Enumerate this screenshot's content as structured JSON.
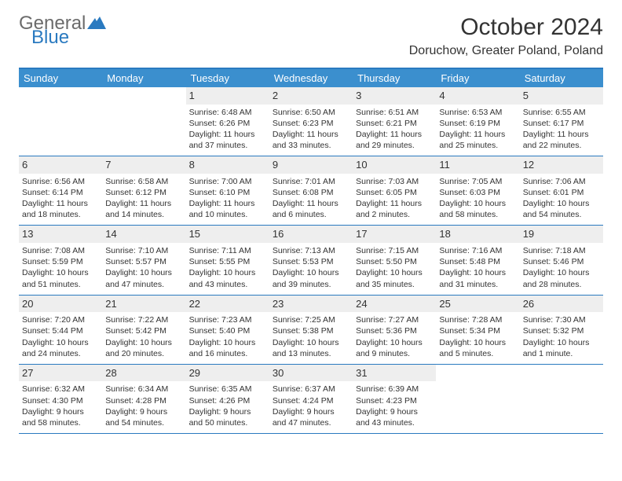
{
  "brand": {
    "part1": "General",
    "part2": "Blue",
    "part1_color": "#6b6b6b",
    "part2_color": "#2a7ac0"
  },
  "header": {
    "title": "October 2024",
    "location": "Doruchow, Greater Poland, Poland"
  },
  "style": {
    "accent": "#3b8fce",
    "accent_border": "#2a7ac0",
    "daynum_bg": "#eeeeee",
    "text": "#333333",
    "head_text": "#ffffff",
    "background": "#ffffff",
    "body_fontsize": 10.5,
    "daynum_fontsize": 13,
    "head_fontsize": 13,
    "title_fontsize": 30,
    "location_fontsize": 16
  },
  "dayheads": [
    "Sunday",
    "Monday",
    "Tuesday",
    "Wednesday",
    "Thursday",
    "Friday",
    "Saturday"
  ],
  "weeks": [
    [
      {},
      {},
      {
        "n": "1",
        "sunrise": "Sunrise: 6:48 AM",
        "sunset": "Sunset: 6:26 PM",
        "daylight": "Daylight: 11 hours and 37 minutes."
      },
      {
        "n": "2",
        "sunrise": "Sunrise: 6:50 AM",
        "sunset": "Sunset: 6:23 PM",
        "daylight": "Daylight: 11 hours and 33 minutes."
      },
      {
        "n": "3",
        "sunrise": "Sunrise: 6:51 AM",
        "sunset": "Sunset: 6:21 PM",
        "daylight": "Daylight: 11 hours and 29 minutes."
      },
      {
        "n": "4",
        "sunrise": "Sunrise: 6:53 AM",
        "sunset": "Sunset: 6:19 PM",
        "daylight": "Daylight: 11 hours and 25 minutes."
      },
      {
        "n": "5",
        "sunrise": "Sunrise: 6:55 AM",
        "sunset": "Sunset: 6:17 PM",
        "daylight": "Daylight: 11 hours and 22 minutes."
      }
    ],
    [
      {
        "n": "6",
        "sunrise": "Sunrise: 6:56 AM",
        "sunset": "Sunset: 6:14 PM",
        "daylight": "Daylight: 11 hours and 18 minutes."
      },
      {
        "n": "7",
        "sunrise": "Sunrise: 6:58 AM",
        "sunset": "Sunset: 6:12 PM",
        "daylight": "Daylight: 11 hours and 14 minutes."
      },
      {
        "n": "8",
        "sunrise": "Sunrise: 7:00 AM",
        "sunset": "Sunset: 6:10 PM",
        "daylight": "Daylight: 11 hours and 10 minutes."
      },
      {
        "n": "9",
        "sunrise": "Sunrise: 7:01 AM",
        "sunset": "Sunset: 6:08 PM",
        "daylight": "Daylight: 11 hours and 6 minutes."
      },
      {
        "n": "10",
        "sunrise": "Sunrise: 7:03 AM",
        "sunset": "Sunset: 6:05 PM",
        "daylight": "Daylight: 11 hours and 2 minutes."
      },
      {
        "n": "11",
        "sunrise": "Sunrise: 7:05 AM",
        "sunset": "Sunset: 6:03 PM",
        "daylight": "Daylight: 10 hours and 58 minutes."
      },
      {
        "n": "12",
        "sunrise": "Sunrise: 7:06 AM",
        "sunset": "Sunset: 6:01 PM",
        "daylight": "Daylight: 10 hours and 54 minutes."
      }
    ],
    [
      {
        "n": "13",
        "sunrise": "Sunrise: 7:08 AM",
        "sunset": "Sunset: 5:59 PM",
        "daylight": "Daylight: 10 hours and 51 minutes."
      },
      {
        "n": "14",
        "sunrise": "Sunrise: 7:10 AM",
        "sunset": "Sunset: 5:57 PM",
        "daylight": "Daylight: 10 hours and 47 minutes."
      },
      {
        "n": "15",
        "sunrise": "Sunrise: 7:11 AM",
        "sunset": "Sunset: 5:55 PM",
        "daylight": "Daylight: 10 hours and 43 minutes."
      },
      {
        "n": "16",
        "sunrise": "Sunrise: 7:13 AM",
        "sunset": "Sunset: 5:53 PM",
        "daylight": "Daylight: 10 hours and 39 minutes."
      },
      {
        "n": "17",
        "sunrise": "Sunrise: 7:15 AM",
        "sunset": "Sunset: 5:50 PM",
        "daylight": "Daylight: 10 hours and 35 minutes."
      },
      {
        "n": "18",
        "sunrise": "Sunrise: 7:16 AM",
        "sunset": "Sunset: 5:48 PM",
        "daylight": "Daylight: 10 hours and 31 minutes."
      },
      {
        "n": "19",
        "sunrise": "Sunrise: 7:18 AM",
        "sunset": "Sunset: 5:46 PM",
        "daylight": "Daylight: 10 hours and 28 minutes."
      }
    ],
    [
      {
        "n": "20",
        "sunrise": "Sunrise: 7:20 AM",
        "sunset": "Sunset: 5:44 PM",
        "daylight": "Daylight: 10 hours and 24 minutes."
      },
      {
        "n": "21",
        "sunrise": "Sunrise: 7:22 AM",
        "sunset": "Sunset: 5:42 PM",
        "daylight": "Daylight: 10 hours and 20 minutes."
      },
      {
        "n": "22",
        "sunrise": "Sunrise: 7:23 AM",
        "sunset": "Sunset: 5:40 PM",
        "daylight": "Daylight: 10 hours and 16 minutes."
      },
      {
        "n": "23",
        "sunrise": "Sunrise: 7:25 AM",
        "sunset": "Sunset: 5:38 PM",
        "daylight": "Daylight: 10 hours and 13 minutes."
      },
      {
        "n": "24",
        "sunrise": "Sunrise: 7:27 AM",
        "sunset": "Sunset: 5:36 PM",
        "daylight": "Daylight: 10 hours and 9 minutes."
      },
      {
        "n": "25",
        "sunrise": "Sunrise: 7:28 AM",
        "sunset": "Sunset: 5:34 PM",
        "daylight": "Daylight: 10 hours and 5 minutes."
      },
      {
        "n": "26",
        "sunrise": "Sunrise: 7:30 AM",
        "sunset": "Sunset: 5:32 PM",
        "daylight": "Daylight: 10 hours and 1 minute."
      }
    ],
    [
      {
        "n": "27",
        "sunrise": "Sunrise: 6:32 AM",
        "sunset": "Sunset: 4:30 PM",
        "daylight": "Daylight: 9 hours and 58 minutes."
      },
      {
        "n": "28",
        "sunrise": "Sunrise: 6:34 AM",
        "sunset": "Sunset: 4:28 PM",
        "daylight": "Daylight: 9 hours and 54 minutes."
      },
      {
        "n": "29",
        "sunrise": "Sunrise: 6:35 AM",
        "sunset": "Sunset: 4:26 PM",
        "daylight": "Daylight: 9 hours and 50 minutes."
      },
      {
        "n": "30",
        "sunrise": "Sunrise: 6:37 AM",
        "sunset": "Sunset: 4:24 PM",
        "daylight": "Daylight: 9 hours and 47 minutes."
      },
      {
        "n": "31",
        "sunrise": "Sunrise: 6:39 AM",
        "sunset": "Sunset: 4:23 PM",
        "daylight": "Daylight: 9 hours and 43 minutes."
      },
      {},
      {}
    ]
  ]
}
